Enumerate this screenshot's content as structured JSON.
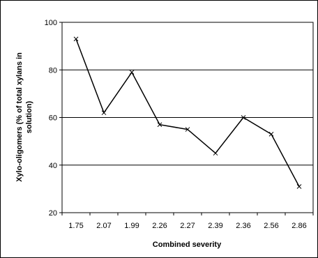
{
  "chart_data": {
    "type": "line",
    "categories": [
      "1.75",
      "2.07",
      "1.99",
      "2.26",
      "2.27",
      "2.39",
      "2.36",
      "2.56",
      "2.86"
    ],
    "values": [
      93,
      62,
      79,
      57,
      55,
      45,
      60,
      53,
      31
    ],
    "title": "",
    "xlabel": "Combined severity",
    "ylabel_lines": [
      "Xylo-oligomers (% of total xylans in",
      "solution)"
    ],
    "ylim": [
      20,
      100
    ],
    "yticks": [
      20,
      40,
      60,
      80,
      100
    ],
    "grid": "horizontal",
    "marker": "x",
    "line_color": "#000000"
  }
}
